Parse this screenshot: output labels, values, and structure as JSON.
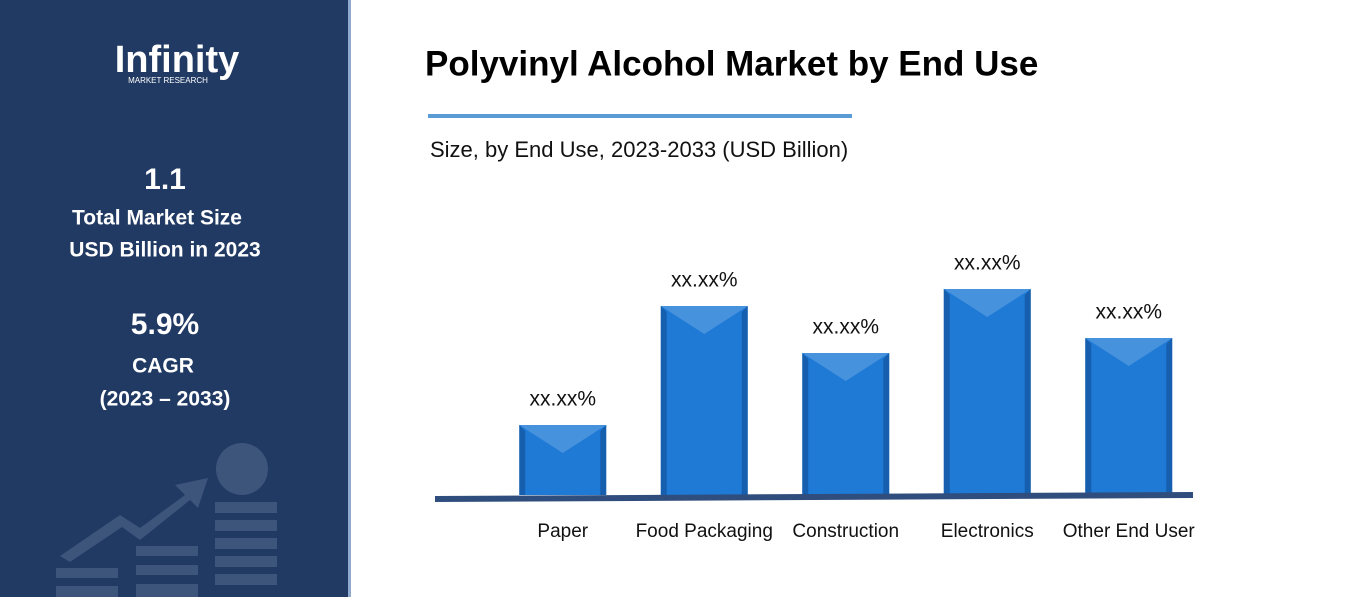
{
  "sidebar": {
    "logo": "Infinity",
    "logo_sub": "MARKET RESEARCH",
    "stat1_value": "1.1",
    "stat1_label1": "Total Market Size",
    "stat1_label2": "USD Billion in 2023",
    "stat2_value": "5.9%",
    "stat2_label1": "CAGR",
    "stat2_label2": "(2023 – 2033)"
  },
  "chart_data": {
    "type": "bar",
    "title": "Polyvinyl Alcohol Market by End Use",
    "subtitle": "Size, by End Use, 2023-2033 (USD Billion)",
    "categories": [
      "Paper",
      "Food Packaging",
      "Construction",
      "Electronics",
      "Other End User"
    ],
    "values": [
      70,
      189,
      142,
      206,
      157
    ],
    "value_labels": [
      "xx.xx%",
      "xx.xx%",
      "xx.xx%",
      "xx.xx%",
      "xx.xx%"
    ],
    "color": "#1f7ad6",
    "ylim": [
      0,
      230
    ]
  }
}
